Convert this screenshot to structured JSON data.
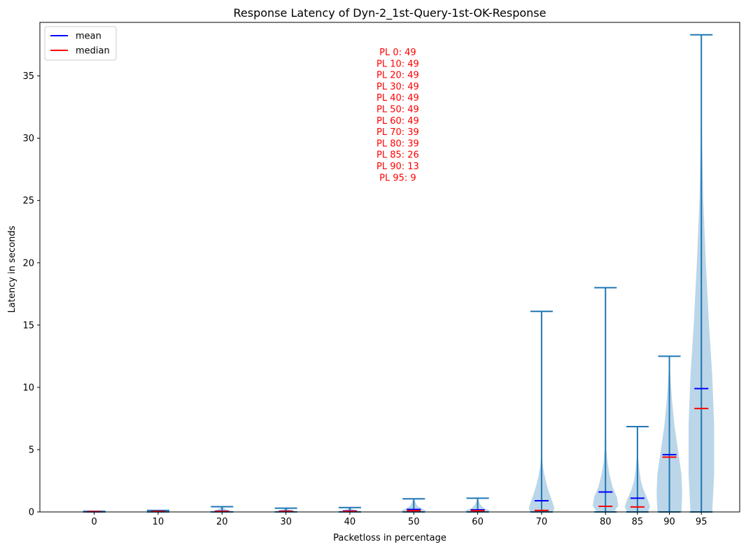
{
  "chart_data": {
    "type": "violin",
    "title": "Response Latency of Dyn-2_1st-Query-1st-OK-Response",
    "xlabel": "Packetloss in percentage",
    "ylabel": "Latency in seconds",
    "ylim": [
      0,
      39.3
    ],
    "xlim": [
      -8.5,
      101
    ],
    "yticks": [
      0,
      5,
      10,
      15,
      20,
      25,
      30,
      35
    ],
    "grid": false,
    "legend": {
      "placement": "top-left",
      "entries": [
        {
          "name": "mean",
          "color": "#0000ff"
        },
        {
          "name": "median",
          "color": "#ff0000"
        }
      ]
    },
    "colors": {
      "body": "#1f77b4",
      "body_fill_opacity": 0.3,
      "mean": "#0000ff",
      "median": "#ff0000",
      "annotation": "#ff0000"
    },
    "annotation_lines": [
      "PL 0: 49",
      "PL 10: 49",
      "PL 20: 49",
      "PL 30: 49",
      "PL 40: 49",
      "PL 50: 49",
      "PL 60: 49",
      "PL 70: 39",
      "PL 80: 39",
      "PL 85: 26",
      "PL 90: 13",
      "PL 95: 9"
    ],
    "violins": [
      {
        "x": 0,
        "label": "0",
        "min": 0.0,
        "max": 0.05,
        "mean": 0.02,
        "median": 0.02,
        "profile": [
          [
            0,
            0.1
          ],
          [
            0.03,
            0.05
          ],
          [
            0.05,
            0.0
          ]
        ]
      },
      {
        "x": 10,
        "label": "10",
        "min": 0.0,
        "max": 0.12,
        "mean": 0.05,
        "median": 0.04,
        "profile": [
          [
            0,
            0.1
          ],
          [
            0.05,
            0.08
          ],
          [
            0.12,
            0.0
          ]
        ]
      },
      {
        "x": 20,
        "label": "20",
        "min": 0.0,
        "max": 0.42,
        "mean": 0.06,
        "median": 0.04,
        "profile": [
          [
            0,
            0.2
          ],
          [
            0.05,
            0.18
          ],
          [
            0.15,
            0.08
          ],
          [
            0.42,
            0.0
          ]
        ]
      },
      {
        "x": 30,
        "label": "30",
        "min": 0.0,
        "max": 0.3,
        "mean": 0.06,
        "median": 0.04,
        "profile": [
          [
            0,
            0.2
          ],
          [
            0.05,
            0.18
          ],
          [
            0.15,
            0.06
          ],
          [
            0.3,
            0.0
          ]
        ]
      },
      {
        "x": 40,
        "label": "40",
        "min": 0.0,
        "max": 0.35,
        "mean": 0.08,
        "median": 0.05,
        "profile": [
          [
            0,
            0.2
          ],
          [
            0.08,
            0.15
          ],
          [
            0.2,
            0.05
          ],
          [
            0.35,
            0.0
          ]
        ]
      },
      {
        "x": 50,
        "label": "50",
        "min": 0.0,
        "max": 1.05,
        "mean": 0.2,
        "median": 0.1,
        "profile": [
          [
            0,
            0.18
          ],
          [
            0.1,
            0.3
          ],
          [
            0.25,
            0.2
          ],
          [
            0.5,
            0.08
          ],
          [
            1.05,
            0.0
          ]
        ]
      },
      {
        "x": 60,
        "label": "60",
        "min": 0.0,
        "max": 1.1,
        "mean": 0.17,
        "median": 0.1,
        "profile": [
          [
            0,
            0.15
          ],
          [
            0.1,
            0.25
          ],
          [
            0.3,
            0.12
          ],
          [
            0.6,
            0.05
          ],
          [
            1.1,
            0.0
          ]
        ]
      },
      {
        "x": 70,
        "label": "70",
        "min": 0.0,
        "max": 16.1,
        "mean": 0.9,
        "median": 0.12,
        "profile": [
          [
            0,
            0.9
          ],
          [
            0.3,
            1.0
          ],
          [
            0.8,
            0.85
          ],
          [
            1.5,
            0.6
          ],
          [
            2.2,
            0.4
          ],
          [
            3.0,
            0.22
          ],
          [
            3.7,
            0.1
          ],
          [
            4.5,
            0.04
          ],
          [
            6,
            0.01
          ],
          [
            16.1,
            0.0
          ]
        ]
      },
      {
        "x": 80,
        "label": "80",
        "min": 0.0,
        "max": 18.0,
        "mean": 1.6,
        "median": 0.45,
        "profile": [
          [
            0,
            0.6
          ],
          [
            0.5,
            0.9
          ],
          [
            1.2,
            0.8
          ],
          [
            2.0,
            0.5
          ],
          [
            3.0,
            0.28
          ],
          [
            4.0,
            0.14
          ],
          [
            5.0,
            0.06
          ],
          [
            7,
            0.02
          ],
          [
            10,
            0.008
          ],
          [
            18.0,
            0.0
          ]
        ]
      },
      {
        "x": 85,
        "label": "85",
        "min": 0.0,
        "max": 6.85,
        "mean": 1.1,
        "median": 0.4,
        "profile": [
          [
            0,
            0.6
          ],
          [
            0.4,
            0.75
          ],
          [
            1.0,
            0.6
          ],
          [
            1.8,
            0.35
          ],
          [
            2.5,
            0.2
          ],
          [
            3.5,
            0.1
          ],
          [
            4.5,
            0.03
          ],
          [
            6.85,
            0.0
          ]
        ]
      },
      {
        "x": 90,
        "label": "90",
        "min": 0.0,
        "max": 12.5,
        "mean": 4.6,
        "median": 4.4,
        "profile": [
          [
            0,
            0.85
          ],
          [
            1.5,
            0.9
          ],
          [
            3.0,
            0.85
          ],
          [
            5.0,
            0.6
          ],
          [
            7.0,
            0.35
          ],
          [
            9.0,
            0.18
          ],
          [
            11.0,
            0.06
          ],
          [
            12.5,
            0.0
          ]
        ]
      },
      {
        "x": 95,
        "label": "95",
        "min": 0.0,
        "max": 38.3,
        "mean": 9.9,
        "median": 8.3,
        "profile": [
          [
            0,
            0.85
          ],
          [
            3.0,
            1.0
          ],
          [
            7.0,
            1.0
          ],
          [
            11.0,
            0.85
          ],
          [
            15.0,
            0.6
          ],
          [
            20.0,
            0.35
          ],
          [
            25.0,
            0.15
          ],
          [
            30.0,
            0.05
          ],
          [
            35.0,
            0.02
          ],
          [
            38.3,
            0.0
          ]
        ]
      }
    ]
  }
}
